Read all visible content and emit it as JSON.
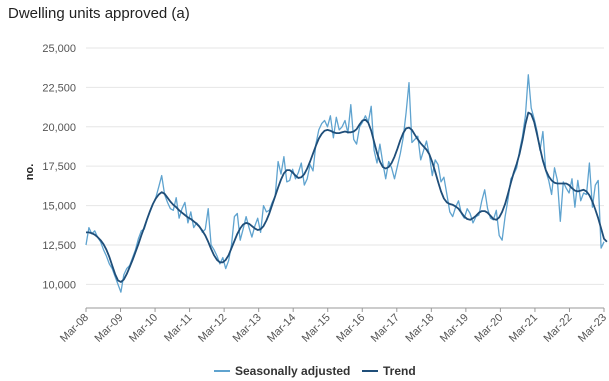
{
  "chart_data": {
    "type": "line",
    "title": "Dwelling units approved (a)",
    "ylabel": "no.",
    "xlabel": "",
    "ylim": [
      8500,
      25000
    ],
    "yticks": [
      10000,
      12500,
      15000,
      17500,
      20000,
      22500,
      25000
    ],
    "ytick_labels": [
      "10,000",
      "12,500",
      "15,000",
      "17,500",
      "20,000",
      "22,500",
      "25,000"
    ],
    "x_start": "Mar-08",
    "x_end": "Mar-23",
    "xtick_labels": [
      "Mar-08",
      "Mar-09",
      "Mar-10",
      "Mar-11",
      "Mar-12",
      "Mar-13",
      "Mar-14",
      "Mar-15",
      "Mar-16",
      "Mar-17",
      "Mar-18",
      "Mar-19",
      "Mar-20",
      "Mar-21",
      "Mar-22",
      "Mar-23"
    ],
    "grid": true,
    "legend_position": "bottom",
    "colors": {
      "seasonally_adjusted": "#5fa3cf",
      "trend": "#1f4e79"
    },
    "series": [
      {
        "name": "Seasonally adjusted",
        "values": [
          12500,
          13600,
          13200,
          13400,
          13000,
          12700,
          12200,
          11800,
          11300,
          11000,
          10500,
          10000,
          9500,
          10600,
          11000,
          11200,
          11700,
          12200,
          12900,
          13400,
          13500,
          14100,
          14600,
          15100,
          15500,
          16200,
          16900,
          15700,
          15200,
          14800,
          14700,
          15500,
          14200,
          14800,
          15200,
          13900,
          14600,
          13600,
          13900,
          13700,
          13300,
          13500,
          14800,
          12500,
          12200,
          11800,
          11300,
          11700,
          11000,
          11500,
          12500,
          14300,
          14500,
          12800,
          13500,
          14300,
          13600,
          13000,
          13700,
          14200,
          13300,
          15000,
          14600,
          14700,
          15200,
          15600,
          17800,
          17000,
          18100,
          16500,
          16600,
          17300,
          16700,
          17100,
          17700,
          16300,
          16700,
          17600,
          17200,
          18900,
          19800,
          20200,
          20400,
          20000,
          20700,
          19300,
          20600,
          19800,
          20000,
          20400,
          19600,
          21400,
          19200,
          18900,
          20000,
          20300,
          20700,
          20300,
          21300,
          18500,
          17700,
          18900,
          17700,
          16700,
          17800,
          17400,
          16700,
          17500,
          18300,
          19300,
          20900,
          22800,
          19000,
          19200,
          19400,
          17900,
          18500,
          19100,
          18200,
          16900,
          17900,
          17600,
          16500,
          16800,
          15700,
          14600,
          14300,
          14900,
          15300,
          14500,
          14200,
          14800,
          14500,
          13900,
          14300,
          14400,
          15300,
          16000,
          14800,
          14200,
          14100,
          14700,
          13100,
          12800,
          14300,
          15400,
          16700,
          17000,
          17400,
          18500,
          19400,
          20700,
          23300,
          21200,
          20500,
          19700,
          18500,
          19700,
          17200,
          16600,
          15700,
          17400,
          16600,
          14000,
          16500,
          16100,
          15800,
          16700,
          14900,
          16600,
          15300,
          15800,
          15700,
          17700,
          14900,
          16300,
          16600,
          12300,
          12700
        ]
      },
      {
        "name": "Trend",
        "values": [
          13300,
          13300,
          13250,
          13150,
          13000,
          12800,
          12550,
          12200,
          11750,
          11200,
          10650,
          10250,
          10150,
          10300,
          10650,
          11100,
          11550,
          12050,
          12550,
          13100,
          13600,
          14150,
          14650,
          15100,
          15450,
          15700,
          15850,
          15750,
          15500,
          15250,
          15050,
          14900,
          14700,
          14550,
          14400,
          14250,
          14150,
          14000,
          13850,
          13650,
          13400,
          13100,
          12700,
          12250,
          11850,
          11550,
          11400,
          11400,
          11550,
          11850,
          12300,
          12750,
          13200,
          13550,
          13800,
          13900,
          13850,
          13700,
          13550,
          13450,
          13500,
          13700,
          14050,
          14500,
          15050,
          15600,
          16150,
          16650,
          17050,
          17250,
          17250,
          17100,
          16900,
          16750,
          16800,
          17000,
          17350,
          17800,
          18300,
          18800,
          19250,
          19550,
          19750,
          19800,
          19750,
          19650,
          19600,
          19600,
          19650,
          19700,
          19650,
          19650,
          19700,
          19850,
          20150,
          20400,
          20450,
          20250,
          19750,
          19050,
          18350,
          17800,
          17450,
          17350,
          17450,
          17700,
          18100,
          18600,
          19150,
          19600,
          19900,
          19950,
          19800,
          19500,
          19200,
          18950,
          18750,
          18550,
          18250,
          17750,
          17150,
          16500,
          15900,
          15450,
          15200,
          15100,
          15050,
          14950,
          14800,
          14550,
          14300,
          14150,
          14100,
          14200,
          14350,
          14550,
          14650,
          14650,
          14550,
          14350,
          14150,
          14100,
          14250,
          14600,
          15100,
          15750,
          16450,
          17100,
          17650,
          18300,
          19150,
          20150,
          20900,
          20800,
          20300,
          19500,
          18650,
          17850,
          17250,
          16850,
          16600,
          16450,
          16400,
          16400,
          16400,
          16400,
          16300,
          16100,
          15950,
          15900,
          15950,
          16000,
          15900,
          15650,
          15250,
          14750,
          14200,
          13550,
          12900,
          12700
        ]
      }
    ]
  }
}
